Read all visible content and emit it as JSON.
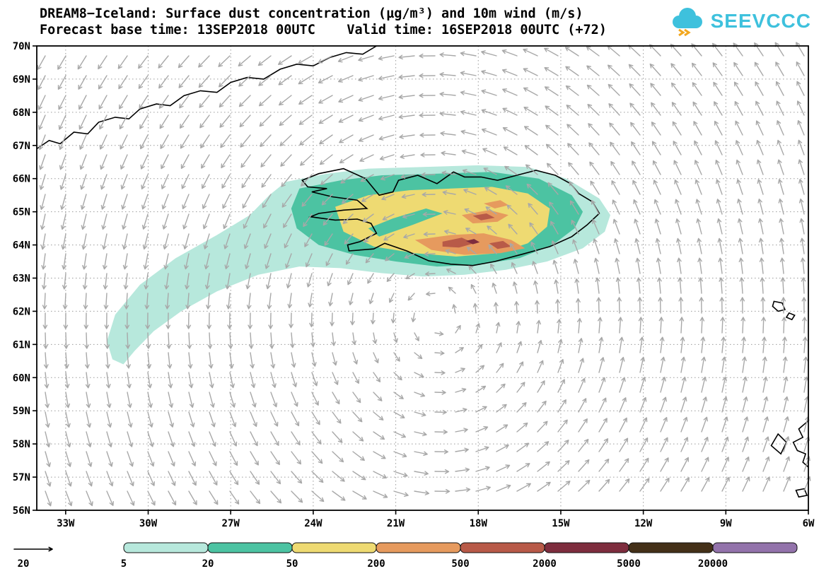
{
  "header": {
    "title": "DREAM8−Iceland: Surface dust concentration (µg/m³) and 10m wind (m/s)",
    "subtitle": "Forecast base time: 13SEP2018 00UTC    Valid time: 16SEP2018 00UTC (+72)",
    "logo": "SEEVCCC"
  },
  "chart_data": {
    "type": "map_contour_vector",
    "title": "DREAM8−Iceland: Surface dust concentration (µg/m³) and 10m wind (m/s)",
    "subtitle": "Forecast base time: 13SEP2018 00UTC    Valid time: 16SEP2018 00UTC (+72)",
    "model": "DREAM8-Iceland",
    "forecast_base_time": "13SEP2018 00UTC",
    "valid_time": "16SEP2018 00UTC (+72)",
    "lon_range": [
      -34.05,
      -6.0
    ],
    "lat_range": [
      56,
      70
    ],
    "lon_ticks": [
      -33,
      -30,
      -27,
      -24,
      -21,
      -18,
      -15,
      -12,
      -9,
      -6
    ],
    "lon_tick_labels": [
      "33W",
      "30W",
      "27W",
      "24W",
      "21W",
      "18W",
      "15W",
      "12W",
      "9W",
      "6W"
    ],
    "lat_ticks": [
      56,
      57,
      58,
      59,
      60,
      61,
      62,
      63,
      64,
      65,
      66,
      67,
      68,
      69,
      70
    ],
    "lat_tick_labels": [
      "56N",
      "57N",
      "58N",
      "59N",
      "60N",
      "61N",
      "62N",
      "63N",
      "64N",
      "65N",
      "66N",
      "67N",
      "68N",
      "69N",
      "70N"
    ],
    "grid": {
      "lon_step": 3,
      "lat_step": 1,
      "style": "dotted",
      "color": "#9a9a9a"
    },
    "wind": {
      "pattern": "cyclonic_vortex",
      "center": {
        "lat": 61.8,
        "lon": -19.5
      },
      "arrow_color": "#a8a8a8",
      "reference": {
        "label": "20",
        "units": "m/s"
      }
    },
    "legend": {
      "levels": [
        "5",
        "20",
        "50",
        "200",
        "500",
        "2000",
        "5000",
        "20000"
      ],
      "colors": [
        "#b7e8dc",
        "#4cc3a2",
        "#eeda72",
        "#e69a5e",
        "#b85a48",
        "#7e2d3e",
        "#443018",
        "#9373ab"
      ]
    },
    "dust_levels": [
      {
        "min": 5,
        "color": "#b7e8dc",
        "polygons": [
          [
            [
              -25.0,
              65.9
            ],
            [
              -23.5,
              66.15
            ],
            [
              -22.0,
              66.3
            ],
            [
              -20.0,
              66.35
            ],
            [
              -18.0,
              66.4
            ],
            [
              -16.2,
              66.35
            ],
            [
              -14.8,
              66.0
            ],
            [
              -13.6,
              65.4
            ],
            [
              -13.2,
              64.9
            ],
            [
              -13.4,
              64.4
            ],
            [
              -14.2,
              63.9
            ],
            [
              -15.5,
              63.5
            ],
            [
              -17.0,
              63.25
            ],
            [
              -18.5,
              63.1
            ],
            [
              -20.0,
              63.05
            ],
            [
              -21.5,
              63.15
            ],
            [
              -23.0,
              63.3
            ],
            [
              -24.5,
              63.35
            ],
            [
              -26.0,
              63.1
            ],
            [
              -27.5,
              62.6
            ],
            [
              -28.8,
              62.0
            ],
            [
              -29.8,
              61.4
            ],
            [
              -30.5,
              60.8
            ],
            [
              -30.9,
              60.4
            ],
            [
              -31.3,
              60.55
            ],
            [
              -31.5,
              61.1
            ],
            [
              -31.2,
              61.9
            ],
            [
              -30.3,
              62.8
            ],
            [
              -29.0,
              63.6
            ],
            [
              -27.5,
              64.3
            ],
            [
              -26.3,
              64.9
            ],
            [
              -25.6,
              65.5
            ]
          ]
        ]
      },
      {
        "min": 20,
        "color": "#4cc3a2",
        "polygons": [
          [
            [
              -24.5,
              65.7
            ],
            [
              -23.0,
              65.95
            ],
            [
              -21.5,
              66.1
            ],
            [
              -19.5,
              66.15
            ],
            [
              -17.5,
              66.2
            ],
            [
              -15.8,
              66.0
            ],
            [
              -14.6,
              65.5
            ],
            [
              -14.2,
              65.0
            ],
            [
              -14.5,
              64.5
            ],
            [
              -15.3,
              64.0
            ],
            [
              -16.5,
              63.6
            ],
            [
              -18.0,
              63.4
            ],
            [
              -19.5,
              63.35
            ],
            [
              -21.0,
              63.5
            ],
            [
              -22.5,
              63.7
            ],
            [
              -23.8,
              64.0
            ],
            [
              -24.6,
              64.5
            ],
            [
              -24.8,
              65.1
            ]
          ]
        ]
      },
      {
        "min": 50,
        "color": "#eeda72",
        "polygons": [
          [
            [
              -23.2,
              65.15
            ],
            [
              -22.0,
              65.5
            ],
            [
              -20.5,
              65.65
            ],
            [
              -19.0,
              65.7
            ],
            [
              -17.5,
              65.75
            ],
            [
              -16.2,
              65.55
            ],
            [
              -15.4,
              65.1
            ],
            [
              -15.5,
              64.55
            ],
            [
              -16.2,
              64.05
            ],
            [
              -17.3,
              63.75
            ],
            [
              -18.8,
              63.65
            ],
            [
              -20.3,
              63.75
            ],
            [
              -21.8,
              63.95
            ],
            [
              -22.9,
              64.4
            ]
          ]
        ]
      },
      {
        "min": 20,
        "color": "#4cc3a2",
        "polygons": [
          [
            [
              -21.6,
              64.25
            ],
            [
              -20.4,
              64.6
            ],
            [
              -19.3,
              64.95
            ],
            [
              -19.9,
              65.1
            ],
            [
              -21.1,
              64.8
            ],
            [
              -22.0,
              64.5
            ]
          ]
        ]
      },
      {
        "min": 200,
        "color": "#e69a5e",
        "polygons": [
          [
            [
              -20.3,
              64.15
            ],
            [
              -19.0,
              64.3
            ],
            [
              -17.8,
              64.35
            ],
            [
              -16.8,
              64.15
            ],
            [
              -16.3,
              63.9
            ],
            [
              -17.2,
              63.75
            ],
            [
              -18.5,
              63.7
            ],
            [
              -19.7,
              63.85
            ]
          ],
          [
            [
              -18.6,
              64.9
            ],
            [
              -17.6,
              65.05
            ],
            [
              -16.9,
              64.9
            ],
            [
              -17.3,
              64.7
            ],
            [
              -18.2,
              64.65
            ]
          ],
          [
            [
              -17.8,
              65.25
            ],
            [
              -17.2,
              65.35
            ],
            [
              -16.9,
              65.2
            ],
            [
              -17.4,
              65.1
            ]
          ]
        ]
      },
      {
        "min": 500,
        "color": "#b85a48",
        "polygons": [
          [
            [
              -19.3,
              64.1
            ],
            [
              -18.6,
              64.22
            ],
            [
              -18.15,
              64.05
            ],
            [
              -18.7,
              63.92
            ],
            [
              -19.3,
              63.95
            ]
          ],
          [
            [
              -17.6,
              64.05
            ],
            [
              -17.1,
              64.12
            ],
            [
              -16.8,
              63.95
            ],
            [
              -17.3,
              63.88
            ]
          ],
          [
            [
              -18.2,
              64.88
            ],
            [
              -17.7,
              64.95
            ],
            [
              -17.4,
              64.82
            ],
            [
              -17.9,
              64.74
            ]
          ]
        ]
      },
      {
        "min": 2000,
        "color": "#7e2d3e",
        "polygons": [
          [
            [
              -18.45,
              64.12
            ],
            [
              -18.15,
              64.18
            ],
            [
              -17.95,
              64.08
            ],
            [
              -18.2,
              64.02
            ]
          ]
        ]
      }
    ],
    "coastlines": [
      {
        "name": "iceland",
        "closed": true,
        "points": [
          [
            -22.7,
            63.82
          ],
          [
            -21.8,
            63.88
          ],
          [
            -21.4,
            64.05
          ],
          [
            -20.6,
            63.82
          ],
          [
            -19.8,
            63.52
          ],
          [
            -19.0,
            63.42
          ],
          [
            -18.2,
            63.38
          ],
          [
            -17.4,
            63.5
          ],
          [
            -16.4,
            63.72
          ],
          [
            -15.4,
            63.95
          ],
          [
            -14.6,
            64.25
          ],
          [
            -14.05,
            64.6
          ],
          [
            -13.6,
            64.95
          ],
          [
            -13.85,
            65.3
          ],
          [
            -14.35,
            65.55
          ],
          [
            -14.65,
            65.85
          ],
          [
            -15.2,
            66.1
          ],
          [
            -15.9,
            66.25
          ],
          [
            -16.6,
            66.1
          ],
          [
            -17.3,
            65.95
          ],
          [
            -17.9,
            66.05
          ],
          [
            -18.5,
            66.05
          ],
          [
            -18.9,
            66.2
          ],
          [
            -19.5,
            65.85
          ],
          [
            -20.2,
            66.1
          ],
          [
            -20.9,
            65.95
          ],
          [
            -21.1,
            65.6
          ],
          [
            -21.6,
            65.5
          ],
          [
            -22.1,
            66.0
          ],
          [
            -22.9,
            66.3
          ],
          [
            -23.8,
            66.15
          ],
          [
            -24.4,
            65.95
          ],
          [
            -24.2,
            65.75
          ],
          [
            -23.5,
            65.7
          ],
          [
            -24.05,
            65.6
          ],
          [
            -23.3,
            65.45
          ],
          [
            -22.4,
            65.35
          ],
          [
            -22.05,
            65.1
          ],
          [
            -22.9,
            65.05
          ],
          [
            -23.8,
            64.95
          ],
          [
            -24.1,
            64.85
          ],
          [
            -23.2,
            64.75
          ],
          [
            -22.4,
            64.78
          ],
          [
            -21.9,
            64.65
          ],
          [
            -21.7,
            64.35
          ],
          [
            -22.3,
            64.1
          ],
          [
            -22.75,
            64.0
          ]
        ]
      },
      {
        "name": "greenland",
        "closed": false,
        "points": [
          [
            -34.05,
            66.9
          ],
          [
            -33.6,
            67.15
          ],
          [
            -33.2,
            67.05
          ],
          [
            -32.7,
            67.4
          ],
          [
            -32.2,
            67.35
          ],
          [
            -31.8,
            67.7
          ],
          [
            -31.2,
            67.85
          ],
          [
            -30.7,
            67.8
          ],
          [
            -30.3,
            68.1
          ],
          [
            -29.7,
            68.25
          ],
          [
            -29.2,
            68.2
          ],
          [
            -28.7,
            68.5
          ],
          [
            -28.1,
            68.65
          ],
          [
            -27.5,
            68.6
          ],
          [
            -27.0,
            68.9
          ],
          [
            -26.4,
            69.05
          ],
          [
            -25.8,
            69.0
          ],
          [
            -25.2,
            69.3
          ],
          [
            -24.6,
            69.45
          ],
          [
            -24.0,
            69.4
          ],
          [
            -23.4,
            69.65
          ],
          [
            -22.8,
            69.8
          ],
          [
            -22.2,
            69.75
          ],
          [
            -21.7,
            70.0
          ]
        ]
      },
      {
        "name": "faroe-island-1",
        "closed": true,
        "points": [
          [
            -7.25,
            62.3
          ],
          [
            -6.95,
            62.25
          ],
          [
            -6.85,
            62.05
          ],
          [
            -7.1,
            62.0
          ],
          [
            -7.3,
            62.15
          ]
        ]
      },
      {
        "name": "faroe-island-2",
        "closed": true,
        "points": [
          [
            -6.7,
            61.95
          ],
          [
            -6.5,
            61.88
          ],
          [
            -6.6,
            61.75
          ],
          [
            -6.8,
            61.82
          ]
        ]
      },
      {
        "name": "hebrides",
        "closed": true,
        "points": [
          [
            -7.1,
            58.3
          ],
          [
            -6.8,
            58.05
          ],
          [
            -7.0,
            57.7
          ],
          [
            -7.35,
            57.95
          ]
        ]
      },
      {
        "name": "scotland-coast",
        "closed": false,
        "points": [
          [
            -6.0,
            58.7
          ],
          [
            -6.35,
            58.45
          ],
          [
            -6.2,
            58.2
          ],
          [
            -6.55,
            58.05
          ],
          [
            -6.4,
            57.8
          ],
          [
            -6.1,
            57.7
          ],
          [
            -6.2,
            57.45
          ],
          [
            -6.0,
            57.3
          ]
        ]
      },
      {
        "name": "scotland-island",
        "closed": true,
        "points": [
          [
            -6.45,
            56.6
          ],
          [
            -6.15,
            56.65
          ],
          [
            -6.05,
            56.45
          ],
          [
            -6.35,
            56.4
          ]
        ]
      }
    ]
  }
}
